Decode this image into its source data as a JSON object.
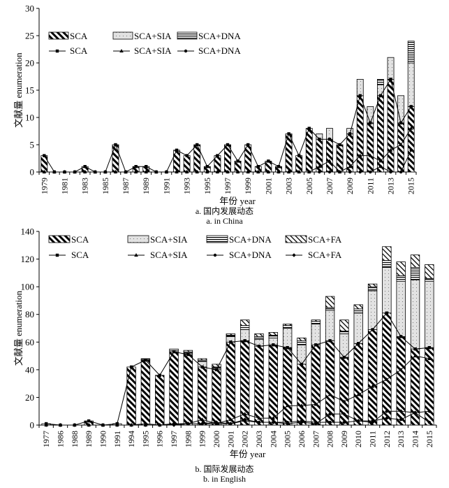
{
  "colors": {
    "ink": "#000000",
    "paper": "#ffffff",
    "sia_fill": "#e2e2e2"
  },
  "chart_data": [
    {
      "type": "bar",
      "stacked": true,
      "title": "",
      "xlabel": "年份 year",
      "ylabel": "文献量 enumeration",
      "ylim": [
        0,
        30
      ],
      "yticks": [
        0,
        5,
        10,
        15,
        20,
        25,
        30
      ],
      "grid": false,
      "legend_position": "top-left",
      "caption_zh": "a. 国内发展动态",
      "caption_en": "a. in China",
      "categories": [
        "1979",
        "1980",
        "1981",
        "1982",
        "1983",
        "1984",
        "1985",
        "1986",
        "1987",
        "1988",
        "1989",
        "1990",
        "1991",
        "1992",
        "1993",
        "1994",
        "1995",
        "1996",
        "1997",
        "1998",
        "1999",
        "2000",
        "2001",
        "2002",
        "2003",
        "2004",
        "2005",
        "2006",
        "2007",
        "2008",
        "2009",
        "2010",
        "2011",
        "2012",
        "2013",
        "2014",
        "2015"
      ],
      "xtick_labels": [
        "1979",
        "1981",
        "1983",
        "1985",
        "1987",
        "1989",
        "1991",
        "1993",
        "1995",
        "1997",
        "1999",
        "2001",
        "2003",
        "2005",
        "2007",
        "2009",
        "2011",
        "2013",
        "2015"
      ],
      "xtick_label_step": 2,
      "series": [
        {
          "name": "SCA",
          "pattern": "hatch",
          "marker": "square",
          "values": [
            3,
            0,
            0,
            0,
            1,
            0,
            0,
            5,
            0,
            1,
            1,
            0,
            0,
            4,
            3,
            5,
            1,
            3,
            5,
            2,
            5,
            1,
            2,
            1,
            7,
            3,
            8,
            6,
            6,
            5,
            7,
            14,
            9,
            14,
            17,
            9,
            12
          ]
        },
        {
          "name": "SCA+SIA",
          "pattern": "dots",
          "marker": "triangle",
          "values": [
            0,
            0,
            0,
            0,
            0,
            0,
            0,
            0,
            0,
            0,
            0,
            0,
            0,
            0,
            0,
            0,
            0,
            0,
            0,
            0,
            0,
            0,
            0,
            0,
            0,
            0,
            0,
            1,
            2,
            0,
            1,
            3,
            3,
            2,
            4,
            5,
            8
          ]
        },
        {
          "name": "SCA+DNA",
          "pattern": "stripes",
          "marker": "circle",
          "values": [
            0,
            0,
            0,
            0,
            0,
            0,
            0,
            0,
            0,
            0,
            0,
            0,
            0,
            0,
            0,
            0,
            0,
            0,
            0,
            0,
            0,
            0,
            0,
            0,
            0,
            0,
            0,
            0,
            0,
            0,
            0,
            0,
            0,
            1,
            0,
            0,
            4
          ]
        }
      ],
      "legend": {
        "bars": [
          "SCA",
          "SCA+SIA",
          "SCA+DNA"
        ],
        "lines": [
          "SCA",
          "SCA+SIA",
          "SCA+DNA"
        ]
      }
    },
    {
      "type": "bar",
      "stacked": true,
      "title": "",
      "xlabel": "年份 year",
      "ylabel": "文献量 enumeration",
      "ylim": [
        0,
        140
      ],
      "yticks": [
        0,
        20,
        40,
        60,
        80,
        100,
        120,
        140
      ],
      "grid": false,
      "legend_position": "top",
      "caption_zh": "b. 国际发展动态",
      "caption_en": "b. in English",
      "categories": [
        "1977",
        "1986",
        "1988",
        "1989",
        "1990",
        "1991",
        "1994",
        "1995",
        "1996",
        "1997",
        "1998",
        "1999",
        "2000",
        "2001",
        "2002",
        "2003",
        "2004",
        "2005",
        "2006",
        "2007",
        "2008",
        "2009",
        "2010",
        "2011",
        "2012",
        "2013",
        "2014",
        "2015"
      ],
      "xtick_labels": [
        "1977",
        "1986",
        "1988",
        "1989",
        "1990",
        "1991",
        "1994",
        "1995",
        "1996",
        "1997",
        "1998",
        "1999",
        "2000",
        "2001",
        "2002",
        "2003",
        "2004",
        "2005",
        "2006",
        "2007",
        "2008",
        "2009",
        "2010",
        "2011",
        "2012",
        "2013",
        "2014",
        "2015"
      ],
      "xtick_label_step": 1,
      "series": [
        {
          "name": "SCA",
          "pattern": "hatch",
          "marker": "square",
          "values": [
            1,
            0,
            0,
            3,
            0,
            1,
            42,
            47,
            36,
            53,
            51,
            42,
            40,
            60,
            61,
            57,
            58,
            56,
            44,
            58,
            61,
            49,
            59,
            69,
            81,
            64,
            55,
            56
          ]
        },
        {
          "name": "SCA+SIA",
          "pattern": "dots",
          "marker": "triangle",
          "values": [
            0,
            0,
            0,
            0,
            0,
            0,
            0,
            0,
            0,
            1,
            1,
            4,
            1,
            4,
            8,
            5,
            5,
            14,
            14,
            15,
            22,
            17,
            22,
            28,
            33,
            40,
            50,
            48
          ]
        },
        {
          "name": "SCA+DNA",
          "pattern": "stripes",
          "marker": "circle",
          "values": [
            0,
            0,
            0,
            0,
            0,
            0,
            0,
            1,
            0,
            1,
            1,
            1,
            1,
            1,
            3,
            2,
            2,
            2,
            3,
            2,
            2,
            2,
            3,
            3,
            5,
            4,
            9,
            2
          ]
        },
        {
          "name": "SCA+FA",
          "pattern": "diag",
          "marker": "diamond",
          "values": [
            0,
            0,
            0,
            0,
            0,
            0,
            0,
            0,
            0,
            0,
            1,
            1,
            2,
            1,
            4,
            2,
            2,
            1,
            2,
            1,
            8,
            8,
            3,
            2,
            10,
            10,
            9,
            10
          ]
        }
      ],
      "legend": {
        "bars": [
          "SCA",
          "SCA+SIA",
          "SCA+DNA",
          "SCA+FA"
        ],
        "lines": [
          "SCA",
          "SCA+SIA",
          "SCA+DNA",
          "SCA+FA"
        ]
      }
    }
  ]
}
